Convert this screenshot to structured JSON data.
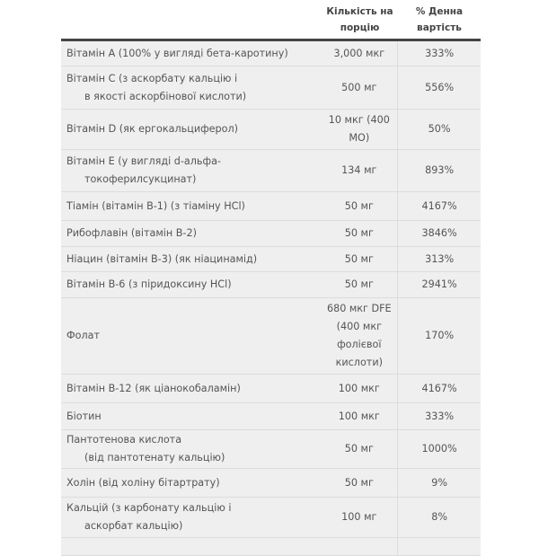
{
  "header": {
    "amount": "Кількість на порцію",
    "dv": "% Денна вартість"
  },
  "rows": [
    {
      "name": "Вітамін А (100% у вигляді бета-каротину)",
      "name2": "",
      "amount": "3,000 мкг",
      "dv": "333%"
    },
    {
      "name": "Вітамін С (з аскорбату кальцію і",
      "name2": "в якості аскорбінової кислоти)",
      "amount": "500 мг",
      "dv": "556%"
    },
    {
      "name": "Вітамін D (як ергокальциферол)",
      "name2": "",
      "amount": "10 мкг (400 МО)",
      "dv": "50%"
    },
    {
      "name": "Вітамін Е (у вигляді d-альфа-",
      "name2": "токоферилсукцинат)",
      "amount": "134 мг",
      "dv": "893%"
    },
    {
      "name": "Тіамін (вітамін В-1) (з тіаміну HCl)",
      "name2": "",
      "amount": "50 мг",
      "dv": "4167%"
    },
    {
      "name": "Рибофлавін (вітамін В-2)",
      "name2": "",
      "amount": "50 мг",
      "dv": "3846%"
    },
    {
      "name": "Ніацин (вітамін В-3) (як ніацинамід)",
      "name2": "",
      "amount": "50 мг",
      "dv": "313%"
    },
    {
      "name": "Вітамін В-6 (з піридоксину HCl)",
      "name2": "",
      "amount": "50 мг",
      "dv": "2941%"
    },
    {
      "name": "Фолат",
      "name2": "",
      "amount": "680 мкг DFE (400 мкг фолієвої кислоти)",
      "dv": "170%"
    },
    {
      "name": "Вітамін В-12 (як ціанокобаламін)",
      "name2": "",
      "amount": "100 мкг",
      "dv": "4167%"
    },
    {
      "name": "Біотин",
      "name2": "",
      "amount": "100 мкг",
      "dv": "333%"
    },
    {
      "name": "Пантотенова кислота",
      "name2": "(від пантотенату кальцію)",
      "amount": "50 мг",
      "dv": "1000%"
    },
    {
      "name": "Холін (від холіну бітартрату)",
      "name2": "",
      "amount": "50 мг",
      "dv": "9%"
    },
    {
      "name": "Кальцій (з карбонату кальцію і",
      "name2": "аскорбат кальцію)",
      "amount": "100 мг",
      "dv": "8%"
    }
  ]
}
